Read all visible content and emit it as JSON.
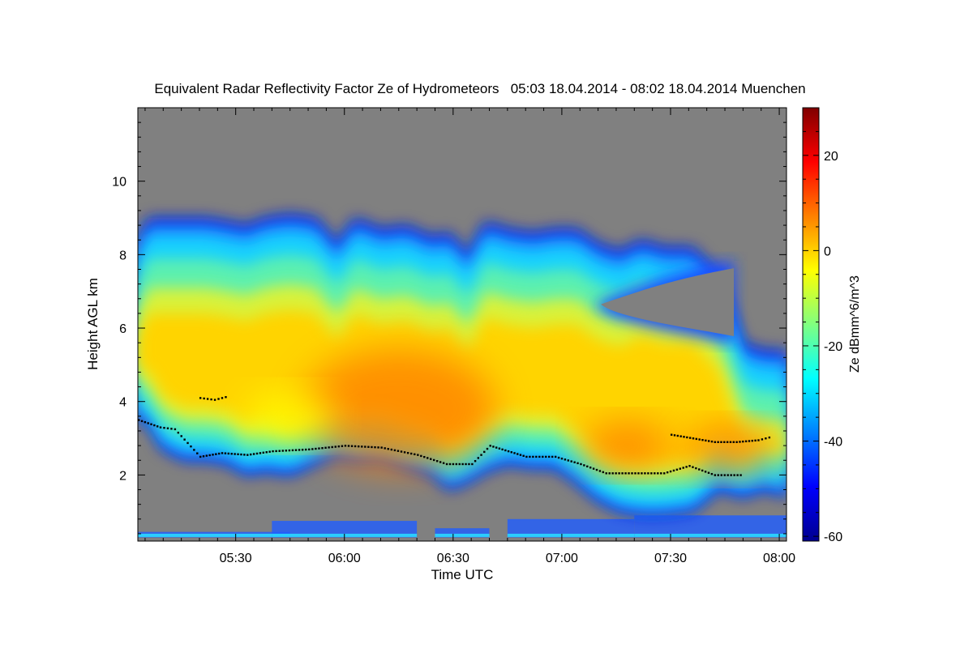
{
  "chart_data": {
    "type": "heatmap",
    "title": "Equivalent Radar Reflectivity Factor Ze of Hydrometeors   05:03 18.04.2014 - 08:02 18.04.2014 Muenchen",
    "xlabel": "Time UTC",
    "ylabel": "Height AGL km",
    "colorbar_label": "Ze dBmm^6/m^3",
    "x_range_minutes": [
      303,
      482
    ],
    "x_ticks": [
      {
        "minutes": 330,
        "label": "05:30"
      },
      {
        "minutes": 360,
        "label": "06:00"
      },
      {
        "minutes": 390,
        "label": "06:30"
      },
      {
        "minutes": 420,
        "label": "07:00"
      },
      {
        "minutes": 450,
        "label": "07:30"
      },
      {
        "minutes": 480,
        "label": "08:00"
      }
    ],
    "ylim": [
      0.2,
      12.0
    ],
    "y_ticks": [
      2,
      4,
      6,
      8,
      10
    ],
    "clim": [
      -61,
      30
    ],
    "colorbar_ticks": [
      20,
      0,
      -20,
      -40,
      -60
    ],
    "colorbar_tick_labels": [
      "20",
      "0",
      "-20",
      "-40",
      "-60"
    ],
    "no_signal_color": "#808080",
    "colormap": [
      "#00008f",
      "#0000ff",
      "#0080ff",
      "#00ffff",
      "#80ff80",
      "#ffff00",
      "#ff8000",
      "#ff0000",
      "#800000"
    ],
    "cloud_profile": [
      {
        "t": 303,
        "top": 8.4,
        "base": 3.5
      },
      {
        "t": 306,
        "top": 9.0,
        "base": 3.4
      },
      {
        "t": 310,
        "top": 9.0,
        "base": 2.7
      },
      {
        "t": 316,
        "top": 9.0,
        "base": 2.4
      },
      {
        "t": 322,
        "top": 9.0,
        "base": 2.4
      },
      {
        "t": 328,
        "top": 8.9,
        "base": 2.3
      },
      {
        "t": 333,
        "top": 8.8,
        "base": 2.0
      },
      {
        "t": 338,
        "top": 9.0,
        "base": 2.1
      },
      {
        "t": 345,
        "top": 9.1,
        "base": 2.0
      },
      {
        "t": 352,
        "top": 9.0,
        "base": 2.3
      },
      {
        "t": 358,
        "top": 8.3,
        "base": 2.5
      },
      {
        "t": 363,
        "top": 9.0,
        "base": 2.4
      },
      {
        "t": 370,
        "top": 8.7,
        "base": 2.4
      },
      {
        "t": 377,
        "top": 8.8,
        "base": 2.2
      },
      {
        "t": 384,
        "top": 8.5,
        "base": 2.0
      },
      {
        "t": 389,
        "top": 8.6,
        "base": 1.6
      },
      {
        "t": 394,
        "top": 8.0,
        "base": 1.8
      },
      {
        "t": 399,
        "top": 8.9,
        "base": 2.1
      },
      {
        "t": 405,
        "top": 8.7,
        "base": 2.3
      },
      {
        "t": 412,
        "top": 8.6,
        "base": 2.2
      },
      {
        "t": 418,
        "top": 8.7,
        "base": 2.2
      },
      {
        "t": 424,
        "top": 8.7,
        "base": 1.8
      },
      {
        "t": 430,
        "top": 8.3,
        "base": 1.3
      },
      {
        "t": 436,
        "top": 8.1,
        "base": 1.0
      },
      {
        "t": 442,
        "top": 8.4,
        "base": 0.9
      },
      {
        "t": 448,
        "top": 8.2,
        "base": 0.9
      },
      {
        "t": 456,
        "top": 8.2,
        "base": 1.0
      },
      {
        "t": 463,
        "top": 7.5,
        "base": 1.6
      },
      {
        "t": 470,
        "top": 5.6,
        "base": 1.4
      },
      {
        "t": 476,
        "top": 5.4,
        "base": 1.6
      },
      {
        "t": 482,
        "top": 5.4,
        "base": 1.4
      }
    ],
    "clear_gap": {
      "t_start": 429,
      "t_end": 463,
      "top_km": 7.3,
      "bottom_km": 6.0
    },
    "core_regions": [
      {
        "t": 375,
        "h": 3.8,
        "ze": 3,
        "name": "main-core"
      },
      {
        "t": 345,
        "h": 3.6,
        "ze": -3,
        "name": "early-core"
      },
      {
        "t": 438,
        "h": 2.8,
        "ze": 4,
        "name": "late-core-1"
      },
      {
        "t": 466,
        "h": 2.7,
        "ze": 4,
        "name": "late-core-2"
      }
    ],
    "melting_layer": [
      {
        "t": 303,
        "h": 3.5
      },
      {
        "t": 309,
        "h": 3.3
      },
      {
        "t": 313,
        "h": 3.25
      },
      {
        "t": 320,
        "h": 2.5
      },
      {
        "t": 326,
        "h": 2.6
      },
      {
        "t": 333,
        "h": 2.55
      },
      {
        "t": 340,
        "h": 2.65
      },
      {
        "t": 350,
        "h": 2.7
      },
      {
        "t": 360,
        "h": 2.8
      },
      {
        "t": 370,
        "h": 2.75
      },
      {
        "t": 380,
        "h": 2.55
      },
      {
        "t": 388,
        "h": 2.3
      },
      {
        "t": 395,
        "h": 2.3
      },
      {
        "t": 400,
        "h": 2.8
      },
      {
        "t": 405,
        "h": 2.65
      },
      {
        "t": 410,
        "h": 2.5
      },
      {
        "t": 418,
        "h": 2.5
      },
      {
        "t": 425,
        "h": 2.3
      },
      {
        "t": 432,
        "h": 2.05
      },
      {
        "t": 440,
        "h": 2.05
      },
      {
        "t": 448,
        "h": 2.05
      },
      {
        "t": 455,
        "h": 2.25
      },
      {
        "t": 462,
        "h": 2.0
      },
      {
        "t": 470,
        "h": 2.0
      }
    ],
    "upper_echo_line": [
      {
        "t": 320,
        "h": 4.1
      },
      {
        "t": 324,
        "h": 4.05
      },
      {
        "t": 328,
        "h": 4.15
      },
      {
        "t": 450,
        "h": 3.1
      },
      {
        "t": 456,
        "h": 3.0
      },
      {
        "t": 462,
        "h": 2.9
      },
      {
        "t": 468,
        "h": 2.9
      },
      {
        "t": 474,
        "h": 2.95
      },
      {
        "t": 478,
        "h": 3.05
      }
    ],
    "ground_clutter": [
      {
        "t_start": 303,
        "t_end": 345,
        "h_bottom": 0.3,
        "h_top": 0.45
      },
      {
        "t_start": 340,
        "t_end": 380,
        "h_bottom": 0.3,
        "h_top": 0.75
      },
      {
        "t_start": 385,
        "t_end": 400,
        "h_bottom": 0.3,
        "h_top": 0.55
      },
      {
        "t_start": 405,
        "t_end": 440,
        "h_bottom": 0.3,
        "h_top": 0.8
      },
      {
        "t_start": 440,
        "t_end": 482,
        "h_bottom": 0.3,
        "h_top": 0.9
      }
    ]
  }
}
